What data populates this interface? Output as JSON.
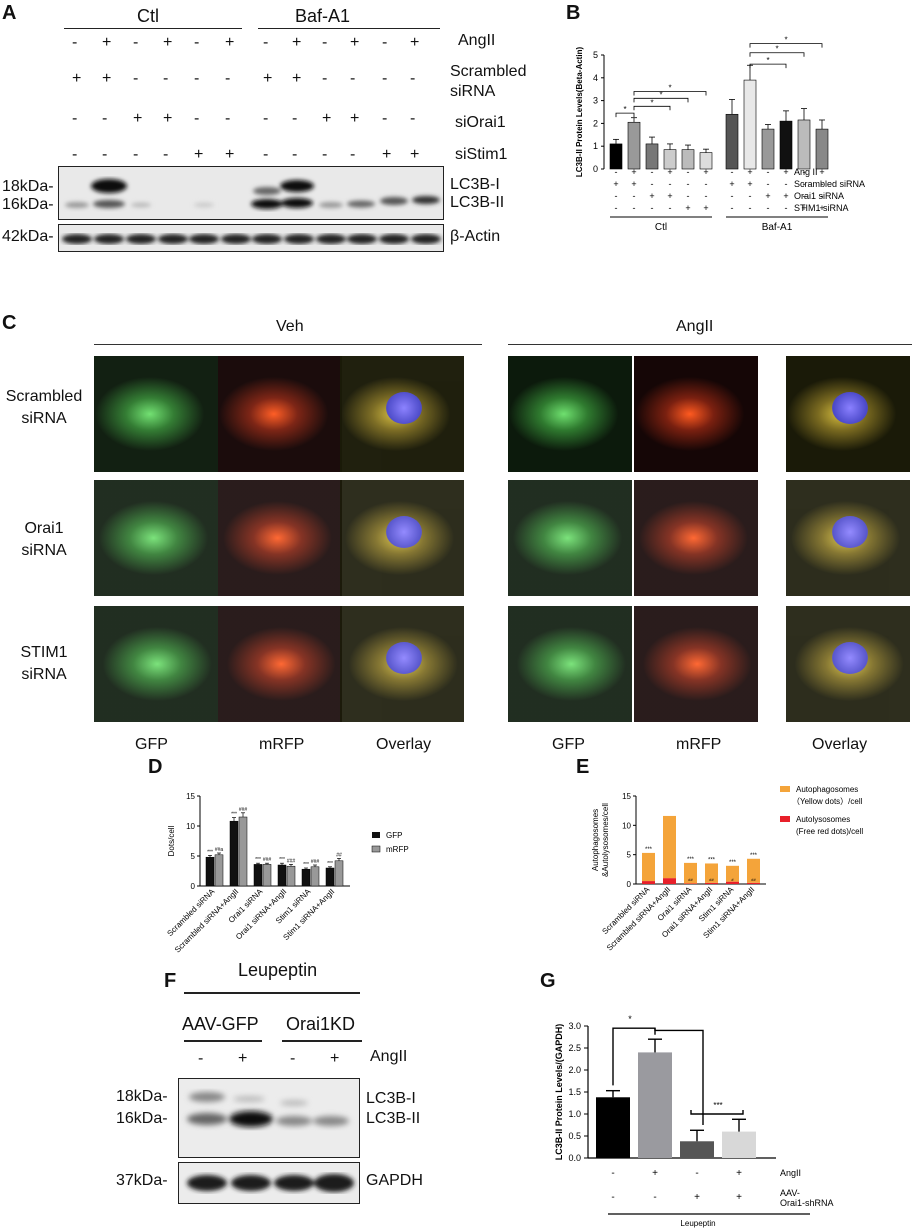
{
  "panels": {
    "A": "A",
    "B": "B",
    "C": "C",
    "D": "D",
    "E": "E",
    "F": "F",
    "G": "G"
  },
  "panel_a": {
    "group_ctl": "Ctl",
    "group_baf": "Baf-A1",
    "rows": [
      {
        "label": "AngII",
        "signs": [
          "-",
          "+",
          "-",
          "+",
          "-",
          "+",
          "-",
          "+",
          "-",
          "+",
          "-",
          "+"
        ]
      },
      {
        "label": "Scrambled siRNA",
        "signs": [
          "+",
          "+",
          "-",
          "-",
          "-",
          "-",
          "+",
          "+",
          "-",
          "-",
          "-",
          "-"
        ]
      },
      {
        "label": "siOrai1",
        "signs": [
          "-",
          "-",
          "+",
          "+",
          "-",
          "-",
          "-",
          "-",
          "+",
          "+",
          "-",
          "-"
        ]
      },
      {
        "label": "siStim1",
        "signs": [
          "-",
          "-",
          "-",
          "-",
          "+",
          "+",
          "-",
          "-",
          "-",
          "-",
          "+",
          "+"
        ]
      }
    ],
    "mw_18": "18kDa-",
    "mw_16": "16kDa-",
    "mw_42": "42kDa-",
    "band_lc3b_i": "LC3B-I",
    "band_lc3b_ii": "LC3B-II",
    "band_actin": "β-Actin"
  },
  "panel_b": {
    "row_labels": [
      "Ang II",
      "Scrambled siRNA",
      "Orai1 siRNA",
      "STIM1 siRNA"
    ],
    "group_ctl": "Ctl",
    "group_baf": "Baf-A1"
  },
  "panel_c": {
    "veh": "Veh",
    "angii": "AngII",
    "row_labels": [
      [
        "Scrambled",
        "siRNA"
      ],
      [
        "Orai1",
        "siRNA"
      ],
      [
        "STIM1",
        "siRNA"
      ]
    ],
    "col_labels": [
      "GFP",
      "mRFP",
      "Overlay",
      "GFP",
      "mRFP",
      "Overlay"
    ]
  },
  "panel_d": {
    "legend_gfp": "GFP",
    "legend_mrfp": "mRFP"
  },
  "panel_e": {
    "legend_auto": "Autophagosomes",
    "legend_auto_sub": "（Yellow dots）/cell",
    "legend_autoly": "Autolysosomes",
    "legend_autoly_sub": "(Free red dots)/cell"
  },
  "panel_f": {
    "leupeptin": "Leupeptin",
    "group_aav": "AAV-GFP",
    "group_orai": "Orai1KD",
    "angii": "AngII",
    "signs": [
      "-",
      "+",
      "-",
      "+"
    ],
    "mw_18": "18kDa-",
    "mw_16": "16kDa-",
    "mw_37": "37kDa-",
    "band_lc3b_i": "LC3B-I",
    "band_lc3b_ii": "LC3B-II",
    "band_gapdh": "GAPDH"
  },
  "panel_g": {
    "row1_label": "AngII",
    "row2_label": "AAV-",
    "row2_label_2": "Orai1-shRNA",
    "row1_signs": [
      "-",
      "+",
      "-",
      "+"
    ],
    "row2_signs": [
      "-",
      "-",
      "+",
      "+"
    ],
    "footer": "Leupeptin"
  },
  "chart_data": [
    {
      "id": "B",
      "type": "bar",
      "ylabel": "LC3B-II Protein Levels(Beta-Actin)",
      "ylim": [
        0,
        5
      ],
      "yticks": [
        "0",
        "1",
        "2",
        "3",
        "4",
        "5"
      ],
      "values": [
        1.1,
        2.05,
        1.1,
        0.85,
        0.85,
        0.72,
        2.4,
        3.9,
        1.75,
        2.1,
        2.15,
        1.75
      ],
      "errors": [
        0.2,
        0.2,
        0.3,
        0.25,
        0.2,
        0.15,
        0.65,
        0.65,
        0.2,
        0.45,
        0.5,
        0.4
      ],
      "colors": [
        "#000000",
        "#999999",
        "#777777",
        "#cccccc",
        "#bbbbbb",
        "#dddddd",
        "#555555",
        "#e8e8e8",
        "#999999",
        "#111111",
        "#bbbbbb",
        "#888888"
      ],
      "significance": "*"
    },
    {
      "id": "D",
      "type": "bar",
      "ylabel": "Dots/cell",
      "ylim": [
        0,
        15
      ],
      "yticks": [
        "0",
        "5",
        "10",
        "15"
      ],
      "categories": [
        "Scrambled siRNA",
        "Scrambled siRNA+AngII",
        "Orai1 siRNA",
        "Orai1 siRNA+AngII",
        "Stim1 siRNA",
        "Stim1 siRNA+AngII"
      ],
      "series": [
        {
          "name": "GFP",
          "values": [
            4.8,
            10.8,
            3.6,
            3.5,
            2.8,
            3.0
          ],
          "errors": [
            0.3,
            0.6,
            0.2,
            0.3,
            0.2,
            0.2
          ],
          "color": "#111111"
        },
        {
          "name": "mRFP",
          "values": [
            5.2,
            11.5,
            3.6,
            3.3,
            3.2,
            4.2
          ],
          "errors": [
            0.3,
            0.7,
            0.2,
            0.3,
            0.3,
            0.4
          ],
          "color": "#999999"
        }
      ],
      "annotations_gfp": [
        "***",
        "***",
        "***",
        "***",
        "***",
        "***"
      ],
      "annotations_mrfp": [
        "##a",
        "###",
        "###",
        "###",
        "###",
        "##"
      ]
    },
    {
      "id": "E",
      "type": "bar",
      "stacked": true,
      "ylabel": "Autophagosomes &Autolysosomes/cell",
      "ylim": [
        0,
        15
      ],
      "yticks": [
        "0",
        "5",
        "10",
        "15"
      ],
      "categories": [
        "Scrambled siRNA",
        "Scrambled siRNA+AngII",
        "Orai1 siRNA",
        "Orai1 siRNA+AngII",
        "Stim1 siRNA",
        "Stim1 siRNA+AngII"
      ],
      "series": [
        {
          "name": "Autolysosomes (Free red dots)/cell",
          "values": [
            0.5,
            1.0,
            0.1,
            0.2,
            0.4,
            0.2
          ],
          "color": "#e8202a"
        },
        {
          "name": "Autophagosomes (Yellow dots)/cell",
          "values": [
            4.8,
            10.6,
            3.5,
            3.3,
            2.7,
            4.1
          ],
          "color": "#f4a43a"
        }
      ],
      "annotations": [
        "***",
        "",
        "***",
        "***",
        "***",
        "***"
      ],
      "inner": [
        "",
        "",
        "##",
        "##",
        "#",
        "##"
      ]
    },
    {
      "id": "G",
      "type": "bar",
      "ylabel": "LC3B-II Protein Levels/(GAPDH)",
      "ylim": [
        0,
        3
      ],
      "yticks": [
        "0.0",
        "0.5",
        "1.0",
        "1.5",
        "2.0",
        "2.5",
        "3.0"
      ],
      "values": [
        1.38,
        2.4,
        0.38,
        0.6
      ],
      "errors": [
        0.15,
        0.3,
        0.25,
        0.28
      ],
      "colors": [
        "#000000",
        "#9a9a9f",
        "#555555",
        "#d8d8d8"
      ],
      "significance": [
        "*",
        "***"
      ]
    }
  ]
}
